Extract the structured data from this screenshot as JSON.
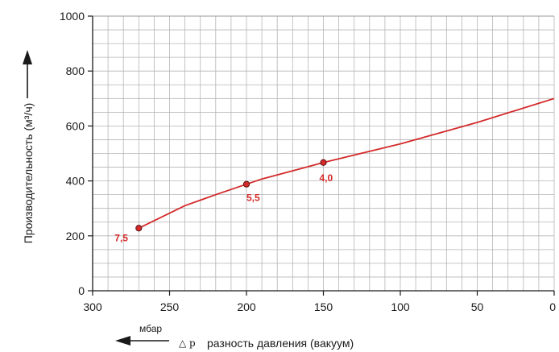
{
  "chart_data": {
    "type": "line",
    "xlim": [
      300,
      0
    ],
    "ylim": [
      0,
      1000
    ],
    "x_ticks": [
      "300",
      "250",
      "200",
      "150",
      "100",
      "50",
      "0"
    ],
    "y_ticks": [
      "0",
      "200",
      "400",
      "600",
      "800",
      "1000"
    ],
    "ylabel": "Производительность (м³/ч)",
    "xlabel_symbol": "△ p",
    "xlabel": "разность давления (вакуум)",
    "x_unit": "мбар",
    "grid": true,
    "series": [
      {
        "color": "#d42a2a",
        "x": [
          270,
          240,
          220,
          200,
          190,
          150,
          100,
          50,
          0
        ],
        "y": [
          228,
          310,
          350,
          388,
          407,
          467,
          535,
          613,
          700
        ]
      }
    ],
    "markers": [
      {
        "x": 270,
        "y": 228,
        "label": "7,5"
      },
      {
        "x": 200,
        "y": 388,
        "label": "5,5"
      },
      {
        "x": 150,
        "y": 467,
        "label": "4,0"
      }
    ]
  }
}
